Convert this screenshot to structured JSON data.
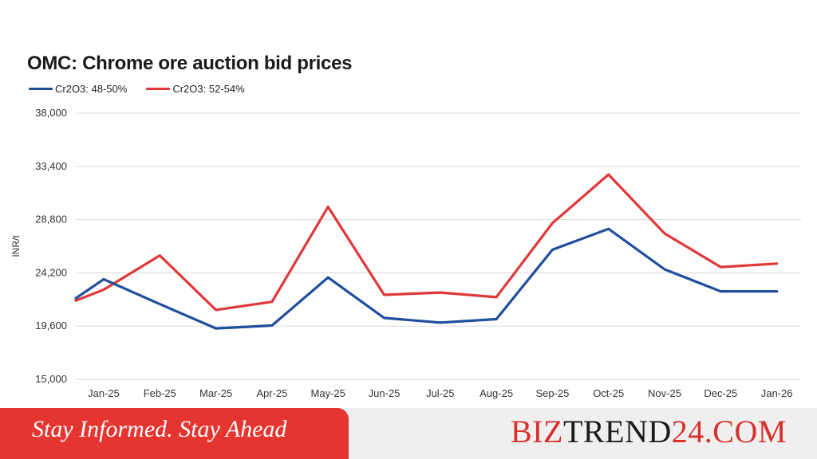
{
  "chart_data": {
    "type": "line",
    "title": "OMC: Chrome ore auction bid prices",
    "xlabel": "",
    "ylabel": "INR/t",
    "categories": [
      "Jan-25",
      "Feb-25",
      "Mar-25",
      "Apr-25",
      "May-25",
      "Jun-25",
      "Jul-25",
      "Aug-25",
      "Sep-25",
      "Oct-25",
      "Nov-25",
      "Dec-25",
      "Jan-26"
    ],
    "y_ticks": [
      "15,000",
      "19,600",
      "24,200",
      "28,800",
      "33,400",
      "38,000"
    ],
    "ylim": [
      15000,
      38000
    ],
    "grid": true,
    "legend_position": "top-left",
    "series": [
      {
        "name": "Cr2O3: 48-50%",
        "color": "#1f4e9c",
        "start_value": 22000,
        "values": [
          23650,
          21500,
          19400,
          19650,
          23800,
          20300,
          19900,
          20200,
          26200,
          28000,
          24500,
          22600,
          22600
        ]
      },
      {
        "name": "Cr2O3: 52-54%",
        "color": "#e0383a",
        "start_value": 21800,
        "values": [
          22750,
          25700,
          21000,
          21700,
          29900,
          22300,
          22500,
          22100,
          28500,
          32700,
          27600,
          24700,
          25000
        ]
      }
    ]
  },
  "footer": {
    "slogan": "Stay Informed. Stay Ahead",
    "brand_a": "BIZ",
    "brand_b": "TREND",
    "brand_c": "24.COM"
  }
}
